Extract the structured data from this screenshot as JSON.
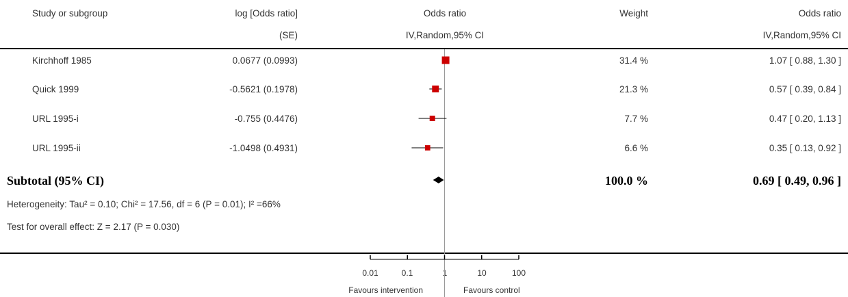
{
  "header": {
    "study": "Study or subgroup",
    "logor_line1": "log [Odds ratio]",
    "logor_line2": "(SE)",
    "or_line1": "Odds ratio",
    "or_line2": "IV,Random,95% CI",
    "weight": "Weight",
    "or_right_line1": "Odds ratio",
    "or_right_line2": "IV,Random,95% CI"
  },
  "rows": [
    {
      "study": "Kirchhoff 1985",
      "logor_se": "0.0677 (0.0993)",
      "weight": "31.4 %",
      "ci": "1.07 [ 0.88, 1.30 ]"
    },
    {
      "study": "Quick 1999",
      "logor_se": "-0.5621 (0.1978)",
      "weight": "21.3 %",
      "ci": "0.57 [ 0.39, 0.84 ]"
    },
    {
      "study": "URL 1995-i",
      "logor_se": "-0.755 (0.4476)",
      "weight": "7.7 %",
      "ci": "0.47 [ 0.20, 1.13 ]"
    },
    {
      "study": "URL 1995-ii",
      "logor_se": "-1.0498 (0.4931)",
      "weight": "6.6 %",
      "ci": "0.35 [ 0.13, 0.92 ]"
    }
  ],
  "subtotal": {
    "label": "Subtotal (95% CI)",
    "weight": "100.0 %",
    "ci": "0.69 [ 0.49, 0.96 ]"
  },
  "heterogeneity": "Heterogeneity: Tau² = 0.10; Chi² = 17.56, df = 6 (P = 0.01); I² =66%",
  "overall_effect": "Test for overall effect: Z = 2.17 (P = 0.030)",
  "axis": {
    "ticks": [
      "0.01",
      "0.1",
      "1",
      "10",
      "100"
    ],
    "favours_left": "Favours intervention",
    "favours_right": "Favours control"
  },
  "chart_data": {
    "type": "scatter",
    "scale": "log",
    "xlim": [
      0.01,
      100
    ],
    "reference_line": 1,
    "marker_color": "#cc0000",
    "studies": [
      {
        "name": "Kirchhoff 1985",
        "or": 1.07,
        "lower": 0.88,
        "upper": 1.3,
        "weight": 31.4
      },
      {
        "name": "Quick 1999",
        "or": 0.57,
        "lower": 0.39,
        "upper": 0.84,
        "weight": 21.3
      },
      {
        "name": "URL 1995-i",
        "or": 0.47,
        "lower": 0.2,
        "upper": 1.13,
        "weight": 7.7
      },
      {
        "name": "URL 1995-ii",
        "or": 0.35,
        "lower": 0.13,
        "upper": 0.92,
        "weight": 6.6
      }
    ],
    "pooled": {
      "or": 0.69,
      "lower": 0.49,
      "upper": 0.96
    }
  }
}
